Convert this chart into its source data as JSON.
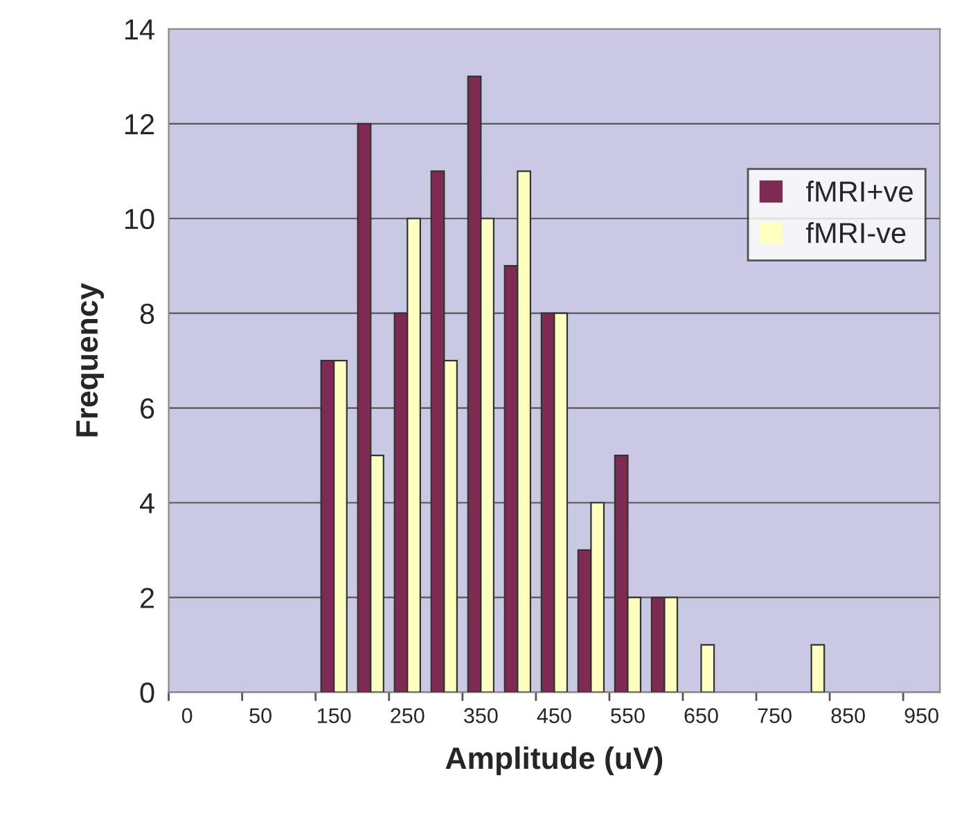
{
  "chart_data": {
    "type": "bar",
    "xlabel": "Amplitude (uV)",
    "ylabel": "Frequency",
    "categories": [
      "0",
      null,
      "50",
      null,
      "150",
      null,
      "250",
      null,
      "350",
      null,
      "450",
      null,
      "550",
      null,
      "650",
      null,
      "750",
      null,
      "850",
      null,
      "950"
    ],
    "series": [
      {
        "name": "fMRI+ve",
        "color": "#7f2a52",
        "values": [
          0,
          0,
          0,
          0,
          7,
          12,
          8,
          11,
          13,
          9,
          8,
          3,
          5,
          2,
          0,
          0,
          0,
          0,
          0,
          0,
          0
        ]
      },
      {
        "name": "fMRI-ve",
        "color": "#ffffc0",
        "values": [
          0,
          0,
          0,
          0,
          7,
          5,
          10,
          7,
          10,
          11,
          8,
          4,
          2,
          2,
          1,
          0,
          0,
          1,
          0,
          0,
          0
        ]
      }
    ],
    "ylim": [
      0,
      14
    ],
    "yticks": [
      0,
      2,
      4,
      6,
      8,
      10,
      12,
      14
    ],
    "grid": "y",
    "legend": "right"
  }
}
